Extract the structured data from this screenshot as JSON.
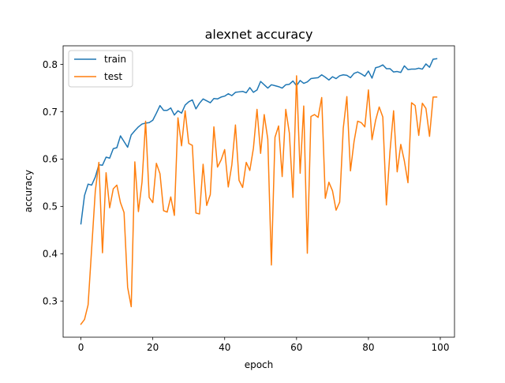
{
  "chart_data": {
    "type": "line",
    "title": "alexnet accuracy",
    "xlabel": "epoch",
    "ylabel": "accuracy",
    "xlim": [
      -4.95,
      103.95
    ],
    "ylim": [
      0.2236,
      0.8393
    ],
    "xticks": [
      0,
      20,
      40,
      60,
      80,
      100
    ],
    "yticks": [
      0.3,
      0.4,
      0.5,
      0.6,
      0.7,
      0.8
    ],
    "xtick_labels": [
      "0",
      "20",
      "40",
      "60",
      "80",
      "100"
    ],
    "ytick_labels": [
      "0.3",
      "0.4",
      "0.5",
      "0.6",
      "0.7",
      "0.8"
    ],
    "grid": false,
    "legend_position": "top-left",
    "x": [
      0,
      1,
      2,
      3,
      4,
      5,
      6,
      7,
      8,
      9,
      10,
      11,
      12,
      13,
      14,
      15,
      16,
      17,
      18,
      19,
      20,
      21,
      22,
      23,
      24,
      25,
      26,
      27,
      28,
      29,
      30,
      31,
      32,
      33,
      34,
      35,
      36,
      37,
      38,
      39,
      40,
      41,
      42,
      43,
      44,
      45,
      46,
      47,
      48,
      49,
      50,
      51,
      52,
      53,
      54,
      55,
      56,
      57,
      58,
      59,
      60,
      61,
      62,
      63,
      64,
      65,
      66,
      67,
      68,
      69,
      70,
      71,
      72,
      73,
      74,
      75,
      76,
      77,
      78,
      79,
      80,
      81,
      82,
      83,
      84,
      85,
      86,
      87,
      88,
      89,
      90,
      91,
      92,
      93,
      94,
      95,
      96,
      97,
      98,
      99
    ],
    "series": [
      {
        "name": "train",
        "color": "#1f77b4",
        "values": [
          0.463,
          0.523,
          0.547,
          0.545,
          0.562,
          0.588,
          0.587,
          0.604,
          0.602,
          0.622,
          0.624,
          0.649,
          0.637,
          0.625,
          0.651,
          0.66,
          0.668,
          0.674,
          0.676,
          0.677,
          0.682,
          0.697,
          0.713,
          0.703,
          0.703,
          0.708,
          0.693,
          0.702,
          0.697,
          0.714,
          0.721,
          0.725,
          0.706,
          0.718,
          0.727,
          0.723,
          0.719,
          0.728,
          0.727,
          0.731,
          0.733,
          0.738,
          0.734,
          0.741,
          0.742,
          0.743,
          0.74,
          0.751,
          0.741,
          0.746,
          0.764,
          0.757,
          0.75,
          0.757,
          0.755,
          0.753,
          0.75,
          0.757,
          0.758,
          0.765,
          0.755,
          0.766,
          0.76,
          0.763,
          0.77,
          0.771,
          0.772,
          0.778,
          0.773,
          0.767,
          0.774,
          0.77,
          0.776,
          0.778,
          0.777,
          0.772,
          0.781,
          0.784,
          0.78,
          0.775,
          0.786,
          0.771,
          0.793,
          0.795,
          0.799,
          0.791,
          0.791,
          0.784,
          0.785,
          0.783,
          0.797,
          0.789,
          0.79,
          0.79,
          0.792,
          0.79,
          0.801,
          0.794,
          0.811,
          0.812
        ]
      },
      {
        "name": "test",
        "color": "#ff7f0e",
        "values": [
          0.251,
          0.261,
          0.292,
          0.412,
          0.532,
          0.593,
          0.402,
          0.571,
          0.497,
          0.537,
          0.545,
          0.508,
          0.487,
          0.329,
          0.288,
          0.594,
          0.489,
          0.551,
          0.68,
          0.519,
          0.508,
          0.591,
          0.569,
          0.491,
          0.488,
          0.52,
          0.481,
          0.687,
          0.628,
          0.702,
          0.633,
          0.629,
          0.486,
          0.484,
          0.589,
          0.502,
          0.525,
          0.668,
          0.583,
          0.598,
          0.62,
          0.541,
          0.588,
          0.672,
          0.555,
          0.54,
          0.593,
          0.576,
          0.623,
          0.705,
          0.612,
          0.694,
          0.642,
          0.376,
          0.646,
          0.67,
          0.563,
          0.705,
          0.655,
          0.519,
          0.776,
          0.57,
          0.712,
          0.401,
          0.69,
          0.694,
          0.688,
          0.73,
          0.517,
          0.551,
          0.533,
          0.492,
          0.509,
          0.665,
          0.732,
          0.575,
          0.637,
          0.68,
          0.677,
          0.668,
          0.746,
          0.641,
          0.682,
          0.71,
          0.689,
          0.503,
          0.616,
          0.702,
          0.573,
          0.631,
          0.596,
          0.55,
          0.719,
          0.713,
          0.65,
          0.718,
          0.707,
          0.648,
          0.731,
          0.731
        ]
      }
    ]
  }
}
